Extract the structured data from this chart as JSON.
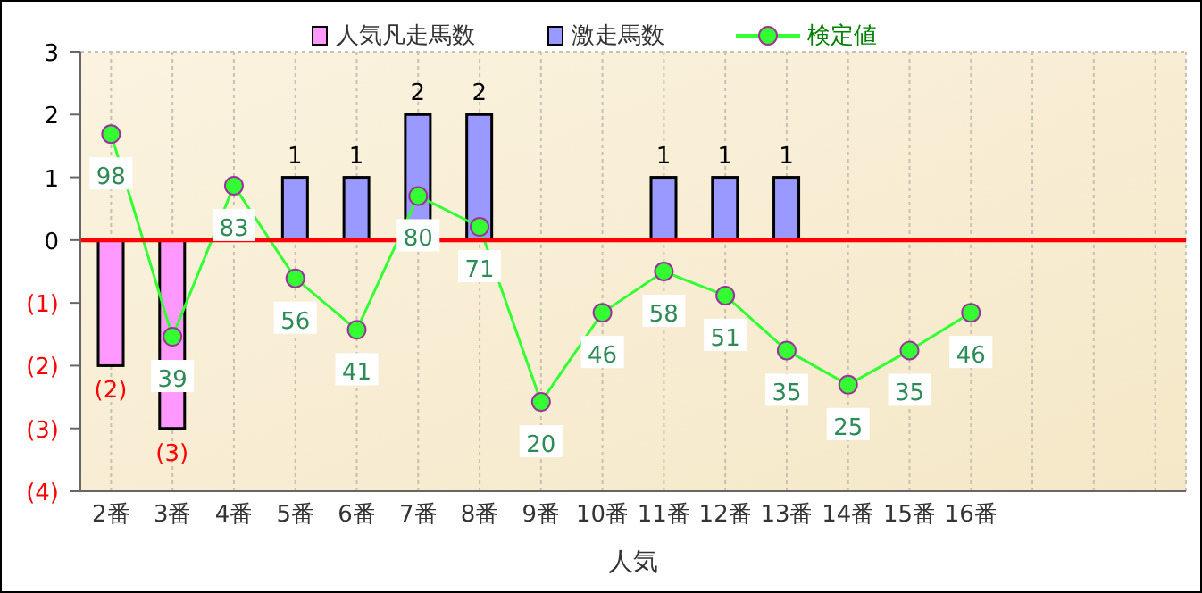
{
  "chart_data": {
    "type": "bar",
    "stacked": true,
    "xlabel": "人気",
    "categories": [
      "2番",
      "3番",
      "4番",
      "5番",
      "6番",
      "7番",
      "8番",
      "9番",
      "10番",
      "11番",
      "12番",
      "13番",
      "14番",
      "15番",
      "16番",
      null,
      null,
      null
    ],
    "series": [
      {
        "name": "人気凡走馬数",
        "color": "#ff99ff",
        "values": [
          -2,
          -3,
          null,
          null,
          null,
          null,
          null,
          null,
          null,
          null,
          null,
          null,
          null,
          null,
          null,
          null,
          null,
          null
        ],
        "value_labels": [
          "(2)",
          "(3)",
          null,
          null,
          null,
          null,
          null,
          null,
          null,
          null,
          null,
          null,
          null,
          null,
          null,
          null,
          null,
          null
        ]
      },
      {
        "name": "激走馬数",
        "color": "#9999ff",
        "values": [
          null,
          null,
          null,
          1,
          1,
          2,
          2,
          null,
          null,
          1,
          1,
          1,
          null,
          null,
          null,
          null,
          null,
          null
        ],
        "value_labels": [
          null,
          null,
          null,
          "1",
          "1",
          "2",
          "2",
          null,
          null,
          "1",
          "1",
          "1",
          null,
          null,
          null,
          null,
          null,
          null
        ]
      },
      {
        "name": "検定値",
        "type": "line",
        "axis": "y2",
        "color": "#33ff33",
        "values": [
          98,
          39,
          83,
          56,
          41,
          80,
          71,
          20,
          46,
          58,
          51,
          35,
          25,
          35,
          46,
          null,
          null,
          null
        ],
        "value_labels": [
          "98",
          "39",
          "83",
          "56",
          "41",
          "80",
          "71",
          "20",
          "46",
          "58",
          "51",
          "35",
          "25",
          "35",
          "46",
          null,
          null,
          null
        ]
      }
    ],
    "ylim": [
      -4,
      3
    ],
    "yticks": [
      {
        "value": -4,
        "label": "(4)"
      },
      {
        "value": -3,
        "label": "(3)"
      },
      {
        "value": -2,
        "label": "(2)"
      },
      {
        "value": -1,
        "label": "(1)"
      },
      0,
      1,
      2,
      3
    ],
    "y2lim": [
      -6,
      122
    ],
    "ref_lines": [
      {
        "axis": "y",
        "value": 0,
        "color": "#ff0000"
      }
    ],
    "grid": true,
    "legend": "top",
    "marker": "circle",
    "line_style": "solid"
  }
}
